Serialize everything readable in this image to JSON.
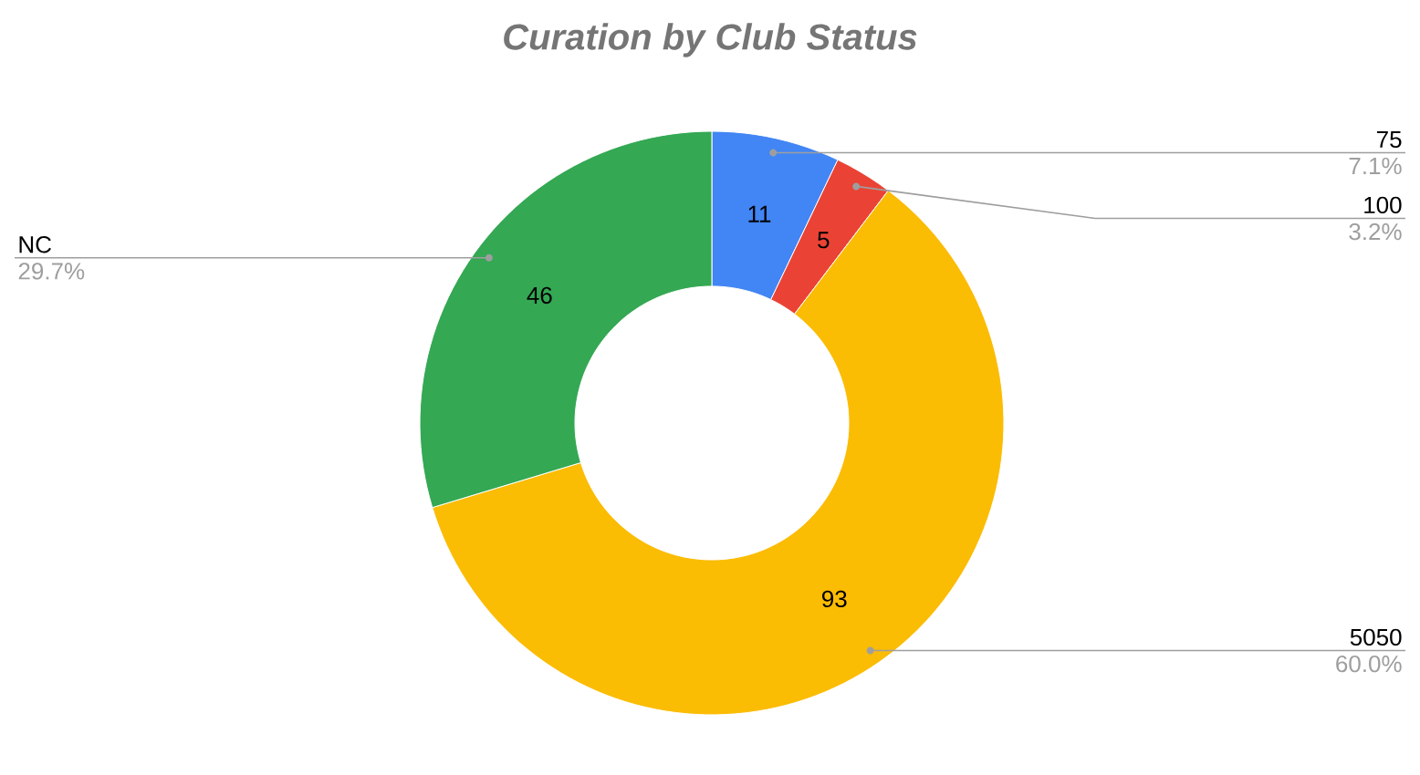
{
  "chart_data": {
    "type": "donut",
    "title": "Curation by Club Status",
    "categories": [
      "75",
      "100",
      "5050",
      "NC"
    ],
    "values": [
      11,
      5,
      93,
      46
    ],
    "colors": [
      "#4285f4",
      "#ea4335",
      "#fbbc04",
      "#34a853"
    ],
    "data_labels": true,
    "annotations": [
      "7.1%",
      "3.2%",
      "60.0%",
      "29.7%"
    ],
    "legend": false
  }
}
